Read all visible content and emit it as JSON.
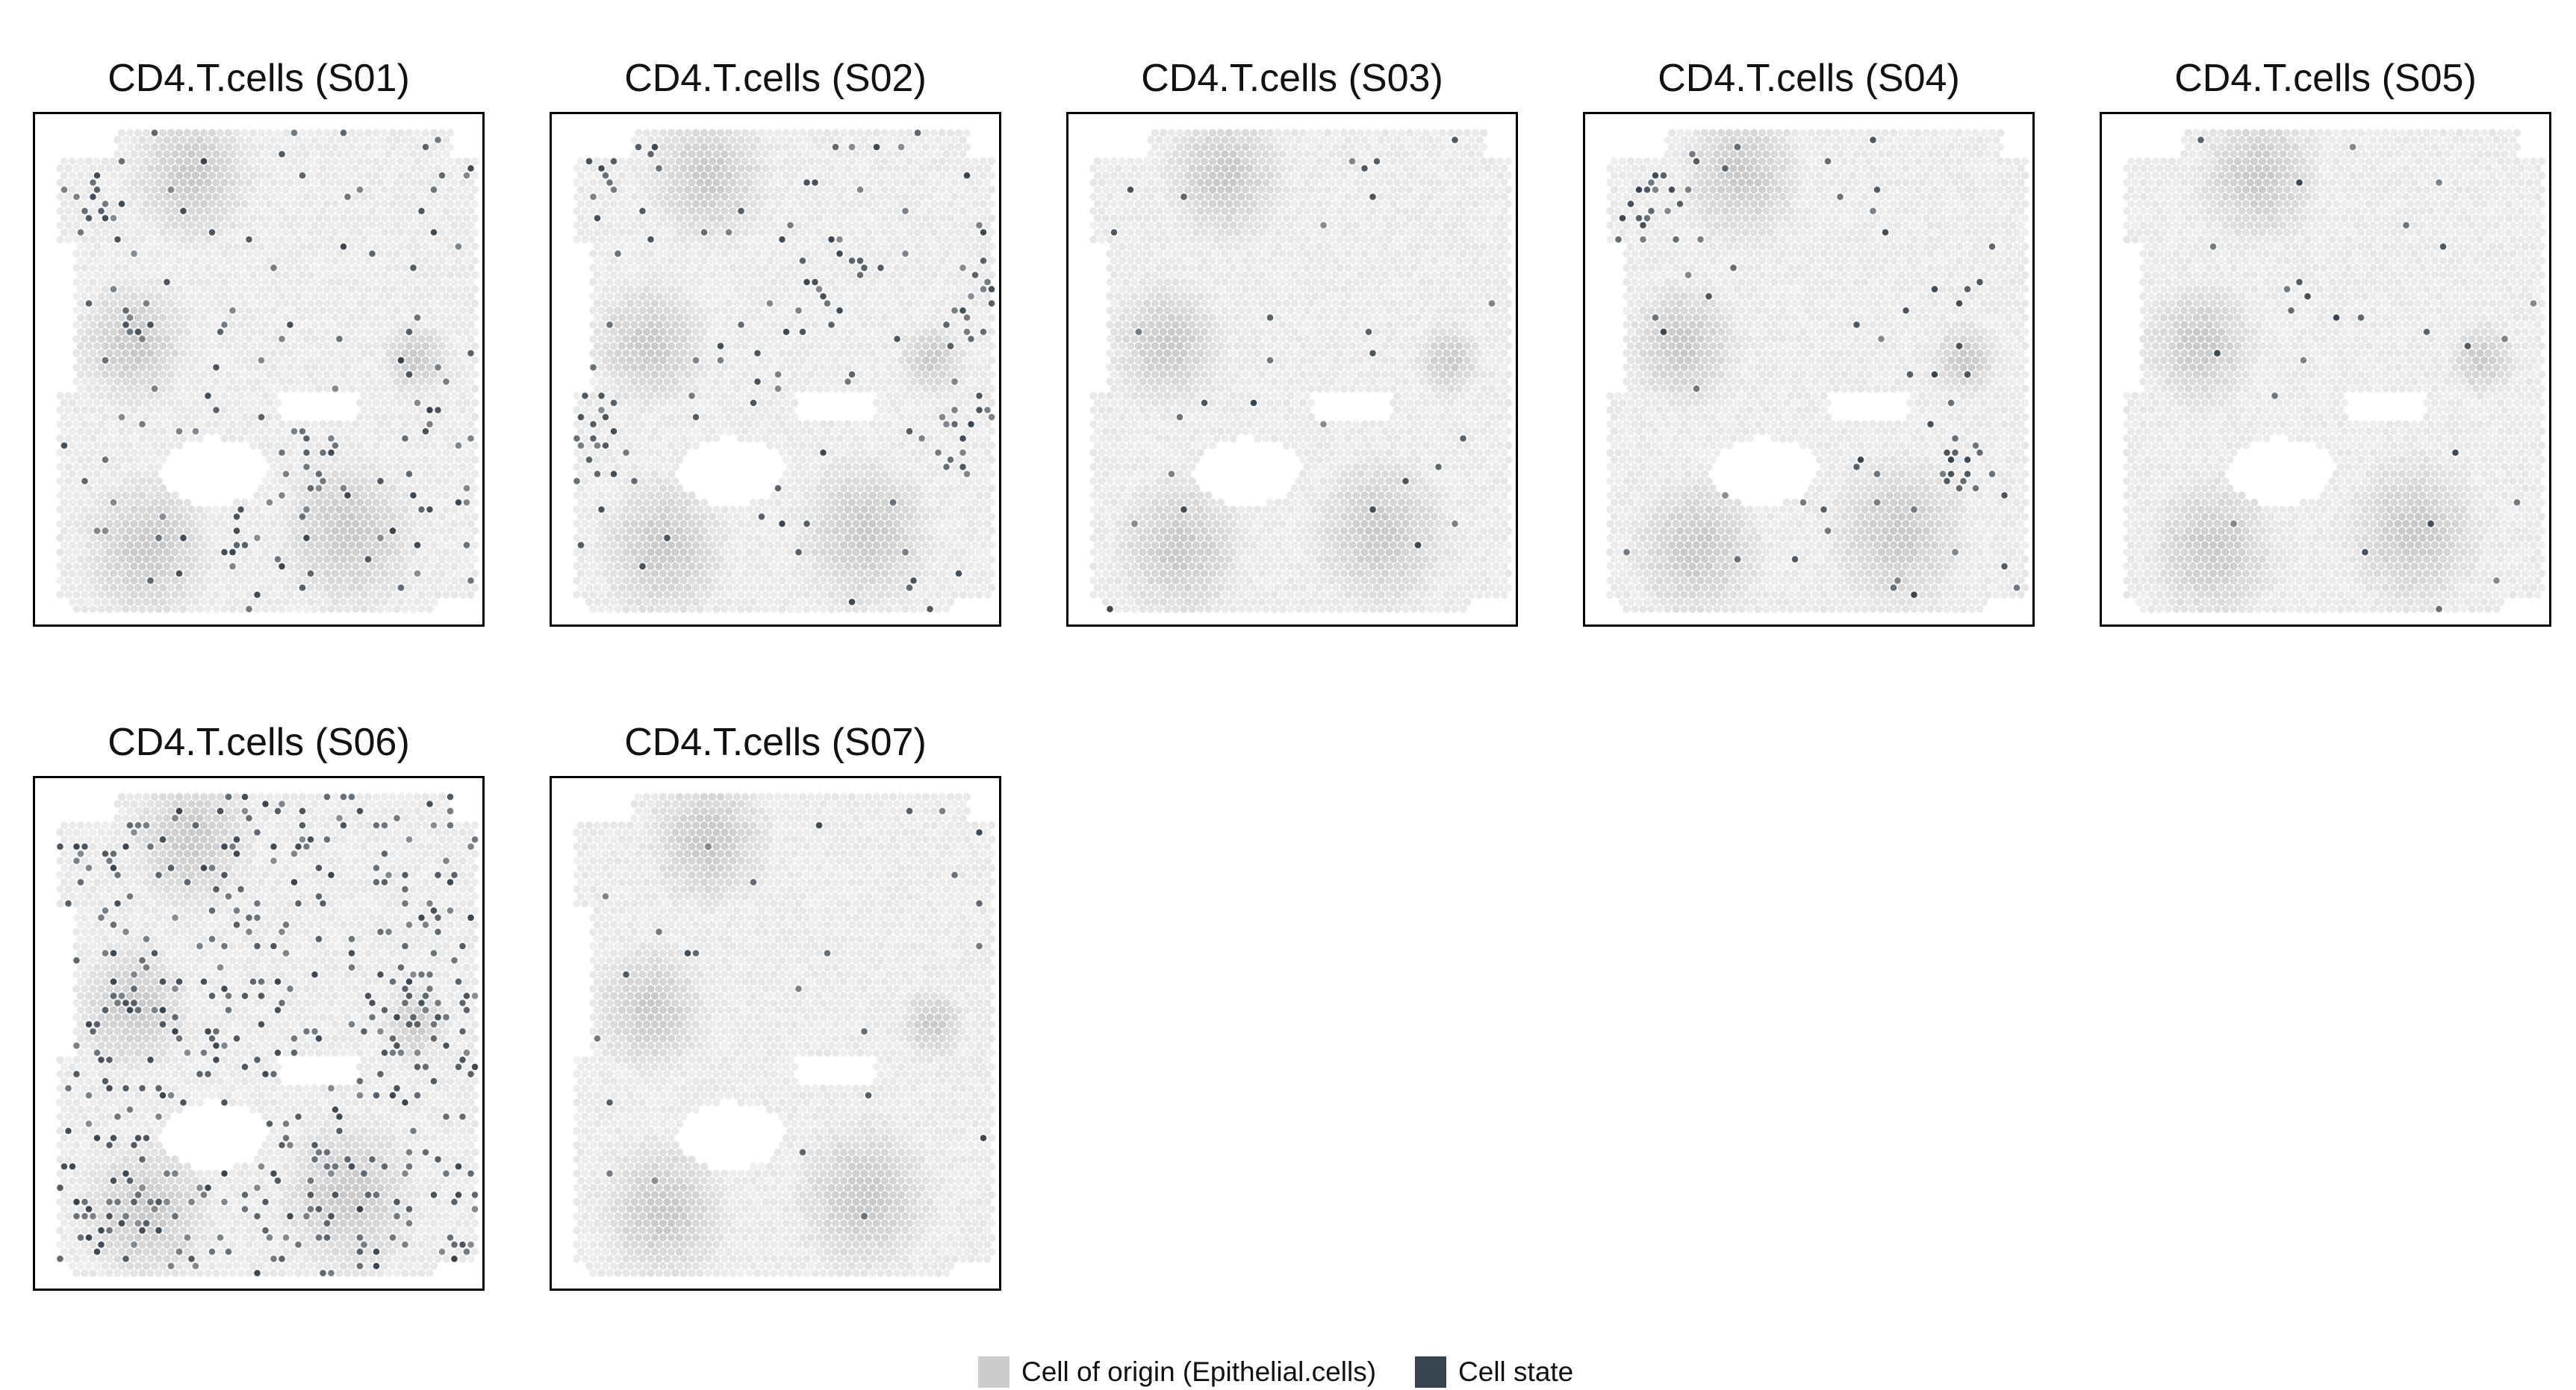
{
  "colors": {
    "cell_of_origin": "#cccccc",
    "cell_state": "#37444f",
    "tissue_light": "#efefef",
    "tissue_mid": "#dadada",
    "tissue_dark": "#c9c9c9"
  },
  "legend": {
    "items": [
      {
        "label": "Cell of origin (Epithelial.cells)",
        "color": "#cccccc"
      },
      {
        "label": "Cell state",
        "color": "#37444f"
      }
    ]
  },
  "chart_data": {
    "type": "scatter",
    "description_kind": "spatial spot map, facetted by sample",
    "axes_visible": false,
    "grid": false,
    "legend_position": "bottom",
    "panels": [
      {
        "title": "CD4.T.cells (S01)",
        "sample": "S01",
        "cell_state_density": "high",
        "hotspots": [
          [
            0.22,
            0.42
          ],
          [
            0.12,
            0.18
          ],
          [
            0.45,
            0.8
          ],
          [
            0.88,
            0.62
          ],
          [
            0.62,
            0.66
          ]
        ]
      },
      {
        "title": "CD4.T.cells (S02)",
        "sample": "S02",
        "cell_state_density": "medium",
        "hotspots": [
          [
            0.1,
            0.64
          ],
          [
            0.9,
            0.62
          ],
          [
            0.65,
            0.3
          ],
          [
            0.15,
            0.12
          ],
          [
            0.95,
            0.38
          ]
        ]
      },
      {
        "title": "CD4.T.cells (S03)",
        "sample": "S03",
        "cell_state_density": "low",
        "hotspots": []
      },
      {
        "title": "CD4.T.cells (S04)",
        "sample": "S04",
        "cell_state_density": "low-medium",
        "hotspots": [
          [
            0.15,
            0.18
          ],
          [
            0.82,
            0.7
          ]
        ]
      },
      {
        "title": "CD4.T.cells (S05)",
        "sample": "S05",
        "cell_state_density": "low",
        "hotspots": []
      },
      {
        "title": "CD4.T.cells (S06)",
        "sample": "S06",
        "cell_state_density": "very high",
        "hotspots": [
          [
            0.25,
            0.8
          ],
          [
            0.65,
            0.8
          ],
          [
            0.25,
            0.45
          ],
          [
            0.18,
            0.15
          ],
          [
            0.55,
            0.08
          ],
          [
            0.85,
            0.47
          ]
        ]
      },
      {
        "title": "CD4.T.cells (S07)",
        "sample": "S07",
        "cell_state_density": "very low",
        "hotspots": []
      }
    ]
  }
}
